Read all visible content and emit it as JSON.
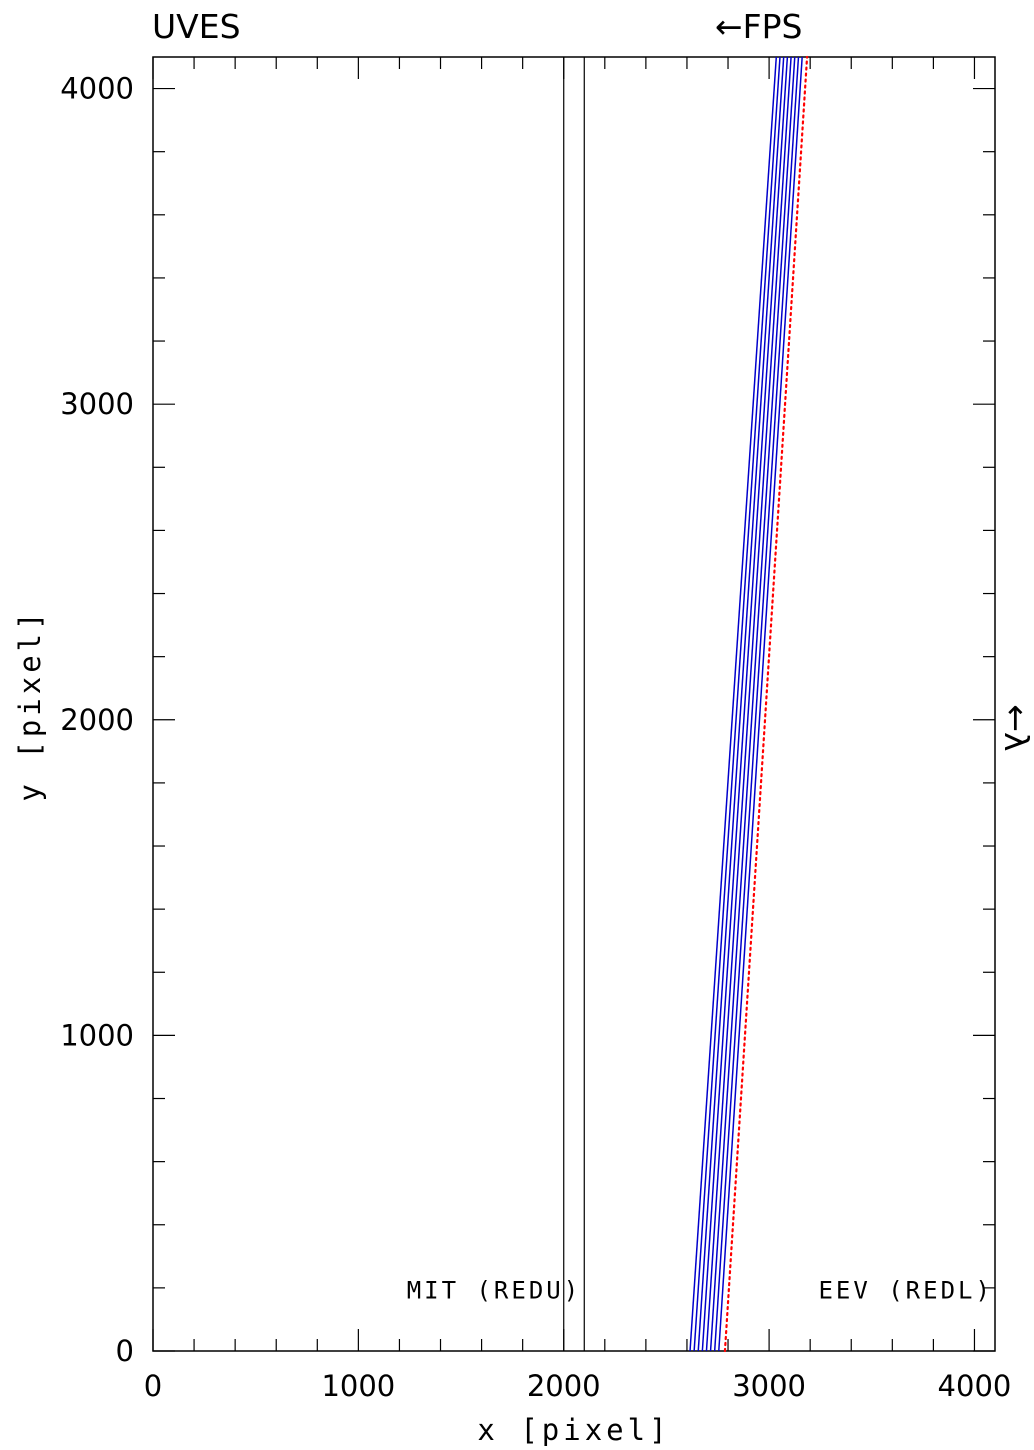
{
  "chart_data": {
    "type": "line",
    "title_left": "UVES",
    "title_right": "←FPS",
    "xlabel": "x [pixel]",
    "ylabel": "y [pixel]",
    "side_label": "←λ",
    "xlim": [
      0,
      4100
    ],
    "ylim": [
      0,
      4100
    ],
    "xticks": [
      0,
      1000,
      2000,
      3000,
      4000
    ],
    "yticks": [
      0,
      1000,
      2000,
      3000,
      4000
    ],
    "minor_step": 200,
    "ccd_boundaries_x": [
      2000,
      2100
    ],
    "annotations": [
      {
        "text": "MIT (REDU)",
        "x": 2085,
        "y": 195
      },
      {
        "text": "EEV (REDL)",
        "x": 4090,
        "y": 195
      }
    ],
    "series": [
      {
        "style": "solid",
        "color": "#0000cc",
        "points": [
          [
            2615,
            0
          ],
          [
            3035,
            4100
          ]
        ]
      },
      {
        "style": "solid",
        "color": "#0000cc",
        "points": [
          [
            2635,
            0
          ],
          [
            3053,
            4100
          ]
        ]
      },
      {
        "style": "solid",
        "color": "#0000cc",
        "points": [
          [
            2655,
            0
          ],
          [
            3071,
            4100
          ]
        ]
      },
      {
        "style": "solid",
        "color": "#0000cc",
        "points": [
          [
            2675,
            0
          ],
          [
            3089,
            4100
          ]
        ]
      },
      {
        "style": "solid",
        "color": "#0000cc",
        "points": [
          [
            2695,
            0
          ],
          [
            3107,
            4100
          ]
        ]
      },
      {
        "style": "solid",
        "color": "#0000cc",
        "points": [
          [
            2715,
            0
          ],
          [
            3125,
            4100
          ]
        ]
      },
      {
        "style": "solid",
        "color": "#0000cc",
        "points": [
          [
            2735,
            0
          ],
          [
            3143,
            4100
          ]
        ]
      },
      {
        "style": "solid",
        "color": "#0000cc",
        "points": [
          [
            2755,
            0
          ],
          [
            3161,
            4100
          ]
        ]
      },
      {
        "style": "dotted",
        "color": "#ff0000",
        "points": [
          [
            2785,
            0
          ],
          [
            3185,
            4100
          ]
        ]
      }
    ],
    "colors": {
      "fibers": "#0000cc",
      "reference": "#ff0000",
      "axes": "#000000"
    }
  }
}
